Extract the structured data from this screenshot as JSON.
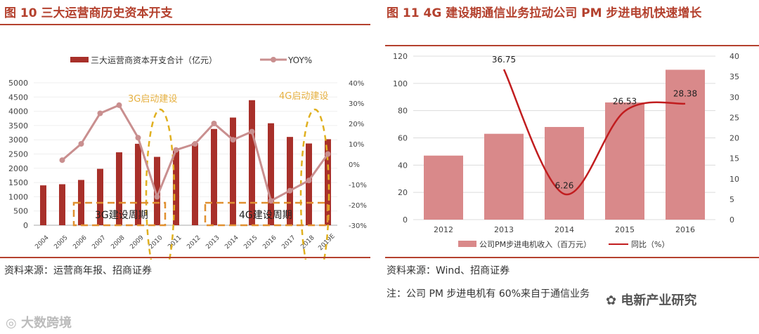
{
  "left": {
    "figure_title": "图 10  三大运营商历史资本开支",
    "source": "资料来源：运营商年报、招商证券",
    "annotations": {
      "cycle_3g_label": "3G启动建设",
      "cycle_4g_label": "4G启动建设",
      "period_3g": "3G建设周期",
      "period_4g": "4G建设周期"
    },
    "chart_data": {
      "type": "bar",
      "categories": [
        "2004",
        "2005",
        "2006",
        "2007",
        "2008",
        "2009",
        "2010",
        "2011",
        "2012",
        "2013",
        "2014",
        "2015",
        "2016",
        "2017",
        "2018",
        "2019E"
      ],
      "series": [
        {
          "name": "三大运营商资本开支合计（亿元）",
          "type": "bar",
          "axis": "left",
          "values": [
            1400,
            1440,
            1590,
            1980,
            2560,
            2860,
            2400,
            2620,
            2880,
            3380,
            3780,
            4390,
            3580,
            3100,
            2870,
            3020
          ]
        },
        {
          "name": "YOY%",
          "type": "line",
          "axis": "right",
          "values": [
            null,
            2,
            10,
            25,
            29,
            13,
            -16,
            7,
            10,
            20,
            12,
            16,
            -18,
            -13,
            -8,
            5
          ]
        }
      ],
      "left_axis": {
        "ylim": [
          0,
          5000
        ],
        "ticks": [
          "0",
          "500",
          "1000",
          "1500",
          "2000",
          "2500",
          "3000",
          "3500",
          "4000",
          "4500",
          "5000"
        ]
      },
      "right_axis": {
        "ylim": [
          -30,
          40
        ],
        "ticks": [
          "-30%",
          "-20%",
          "-10%",
          "0%",
          "10%",
          "20%",
          "30%",
          "40%"
        ]
      },
      "title": "",
      "xlabel": "",
      "ylabel": ""
    }
  },
  "right": {
    "figure_title": "图 11 4G 建设期通信业务拉动公司 PM 步进电机快速增长",
    "source": "资料来源：Wind、招商证券",
    "note": "注：公司 PM 步进电机有 60%来自于通信业务",
    "chart_data": {
      "type": "bar",
      "categories": [
        "2012",
        "2013",
        "2014",
        "2015",
        "2016"
      ],
      "series": [
        {
          "name": "公司PM步进电机收入（百万元）",
          "type": "bar",
          "axis": "left",
          "values": [
            47,
            63,
            68,
            86,
            110
          ]
        },
        {
          "name": "同比（%）",
          "type": "line",
          "axis": "right",
          "values": [
            null,
            36.75,
            6.26,
            26.53,
            28.38
          ],
          "labels": [
            "",
            "36.75",
            "6.26",
            "26.53",
            "28.38"
          ]
        }
      ],
      "left_axis": {
        "ylim": [
          0,
          120
        ],
        "ticks": [
          "0",
          "20",
          "40",
          "60",
          "80",
          "100",
          "120"
        ]
      },
      "right_axis": {
        "ylim": [
          0,
          40
        ],
        "ticks": [
          "0",
          "5",
          "10",
          "15",
          "20",
          "25",
          "30",
          "35",
          "40"
        ]
      },
      "title": "",
      "xlabel": "",
      "ylabel": ""
    }
  },
  "watermarks": {
    "bottom_left": "大数跨境",
    "bottom_right": "电新产业研究"
  },
  "colors": {
    "accent": "#b4412e",
    "bar_left": "#a8302a",
    "line_left": "#c98f8f",
    "bar_right": "#d9898a",
    "line_right": "#c11d1f",
    "dash": "#e0a030"
  }
}
